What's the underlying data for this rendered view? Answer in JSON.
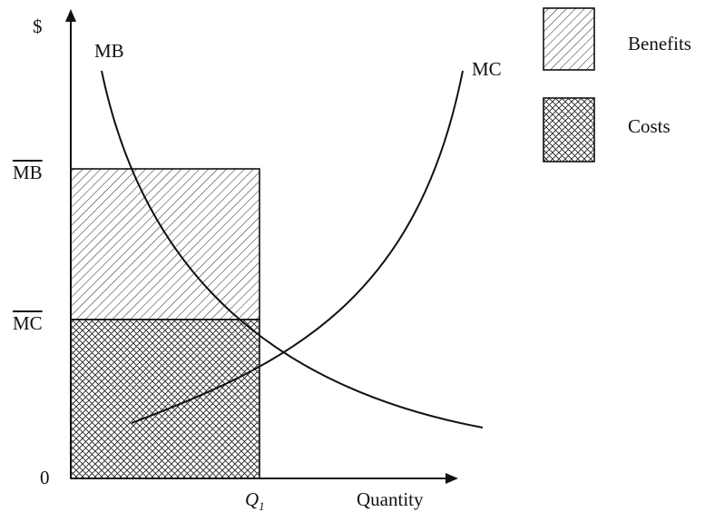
{
  "axes": {
    "y_label": "$",
    "x_label": "Quantity",
    "origin": "0",
    "q_label": "Q",
    "q_sub": "1",
    "mb_bar_tick": "MB",
    "mc_bar_tick": "MC"
  },
  "curves": {
    "mb_label": "MB",
    "mc_label": "MC"
  },
  "legend": {
    "benefits": "Benefits",
    "costs": "Costs"
  }
}
